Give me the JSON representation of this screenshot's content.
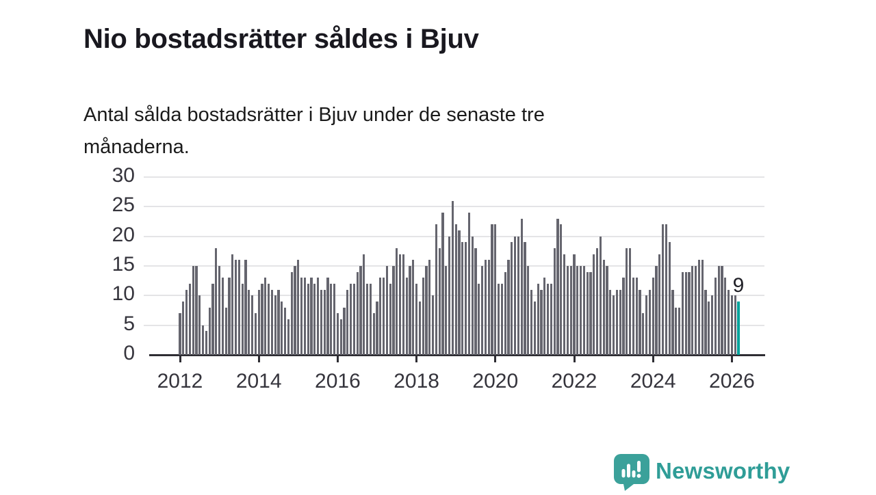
{
  "header": {
    "title": "Nio bostadsrätter såldes i Bjuv",
    "subtitle": "Antal sålda bostadsrätter i Bjuv under de senaste tre månaderna."
  },
  "chart_data": {
    "type": "bar",
    "title": "Nio bostadsrätter såldes i Bjuv",
    "subtitle": "Antal sålda bostadsrätter i Bjuv under de senaste tre månaderna.",
    "x_start": "2012-01",
    "x_end": "2026-03",
    "x_frequency": "monthly",
    "values": [
      7,
      9,
      11,
      12,
      15,
      15,
      10,
      5,
      4,
      8,
      12,
      18,
      15,
      13,
      8,
      13,
      17,
      16,
      16,
      12,
      16,
      11,
      10,
      7,
      11,
      12,
      13,
      12,
      11,
      10,
      11,
      9,
      8,
      6,
      14,
      15,
      16,
      13,
      13,
      12,
      13,
      12,
      13,
      11,
      11,
      13,
      12,
      12,
      7,
      6,
      8,
      11,
      12,
      12,
      14,
      15,
      17,
      12,
      12,
      7,
      9,
      13,
      13,
      15,
      12,
      15,
      18,
      17,
      17,
      13,
      15,
      16,
      12,
      9,
      13,
      15,
      16,
      10,
      22,
      18,
      24,
      15,
      20,
      26,
      22,
      21,
      19,
      19,
      24,
      20,
      18,
      12,
      15,
      16,
      16,
      22,
      22,
      12,
      12,
      14,
      16,
      19,
      20,
      20,
      23,
      19,
      15,
      11,
      9,
      12,
      11,
      13,
      12,
      12,
      18,
      23,
      22,
      17,
      15,
      15,
      17,
      15,
      15,
      15,
      14,
      14,
      17,
      18,
      20,
      16,
      15,
      11,
      10,
      11,
      11,
      13,
      18,
      18,
      13,
      13,
      11,
      7,
      10,
      11,
      13,
      15,
      17,
      22,
      22,
      19,
      11,
      8,
      8,
      14,
      14,
      14,
      15,
      15,
      16,
      16,
      11,
      9,
      10,
      13,
      15,
      15,
      13,
      11,
      10,
      10,
      9
    ],
    "highlight_last_bar": true,
    "highlight_value_label": "9",
    "y_ticks": [
      0,
      5,
      10,
      15,
      20,
      25,
      30
    ],
    "ylim": [
      0,
      30
    ],
    "x_tick_labels": [
      "2012",
      "2014",
      "2016",
      "2018",
      "2020",
      "2022",
      "2024",
      "2026"
    ],
    "grid": true,
    "legend": "none",
    "colors": {
      "bar": "#65656e",
      "highlight": "#00a29b",
      "gridline": "#e4e4e6",
      "axis": "#2e2d33",
      "axis_text": "#35343c"
    }
  },
  "footer": {
    "brand": "Newsworthy",
    "logo_icon": "newsworthy-speech-bubble-bar-chart-icon",
    "brand_color": "#2f9d97",
    "logo_color": "#3ba19a"
  }
}
